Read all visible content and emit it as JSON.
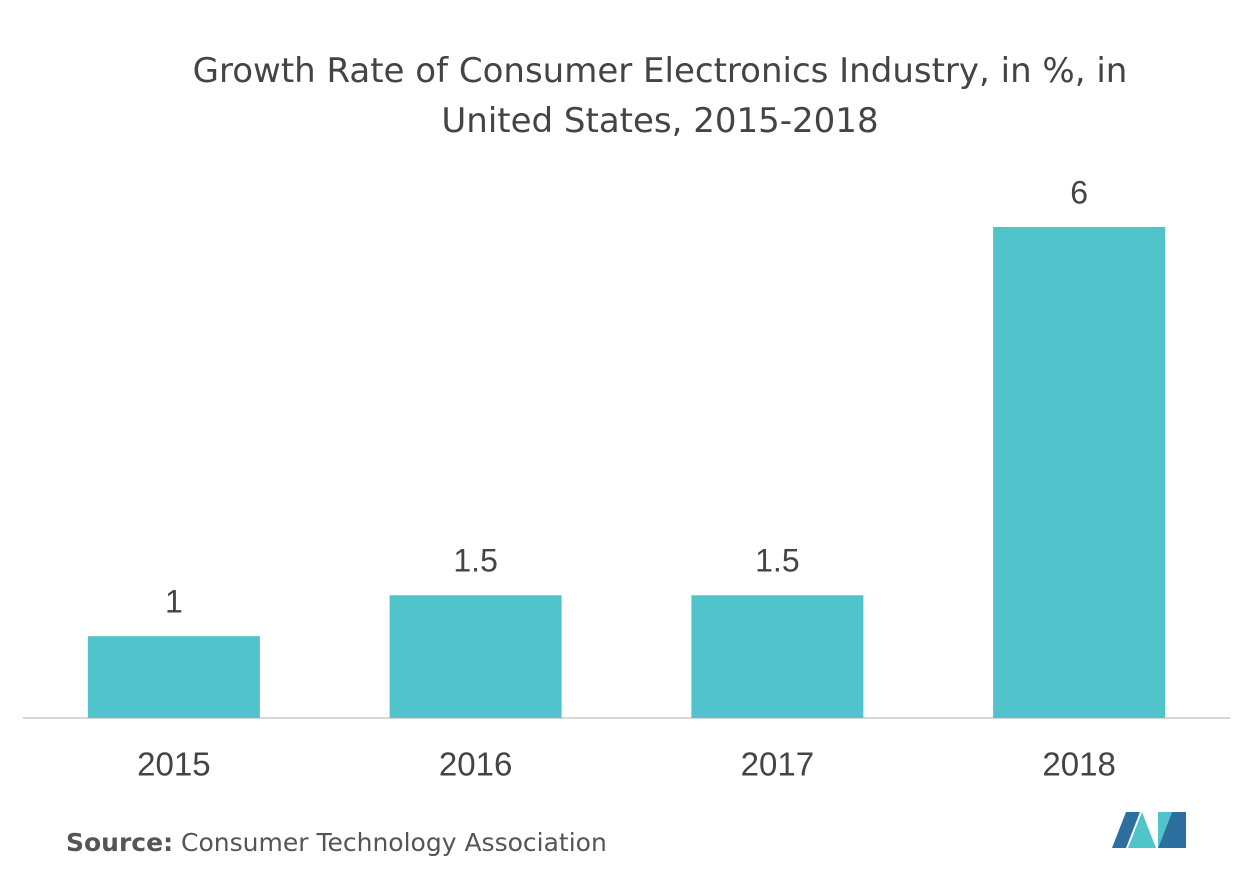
{
  "chart_data": {
    "type": "bar",
    "title": "Growth Rate of Consumer Electronics Industry, in %, in United States, 2015-2018",
    "categories": [
      "2015",
      "2016",
      "2017",
      "2018"
    ],
    "values": [
      1,
      1.5,
      1.5,
      6
    ],
    "color": "#51c3ca",
    "source_label": "Source:",
    "source": "Consumer Technology Association"
  }
}
